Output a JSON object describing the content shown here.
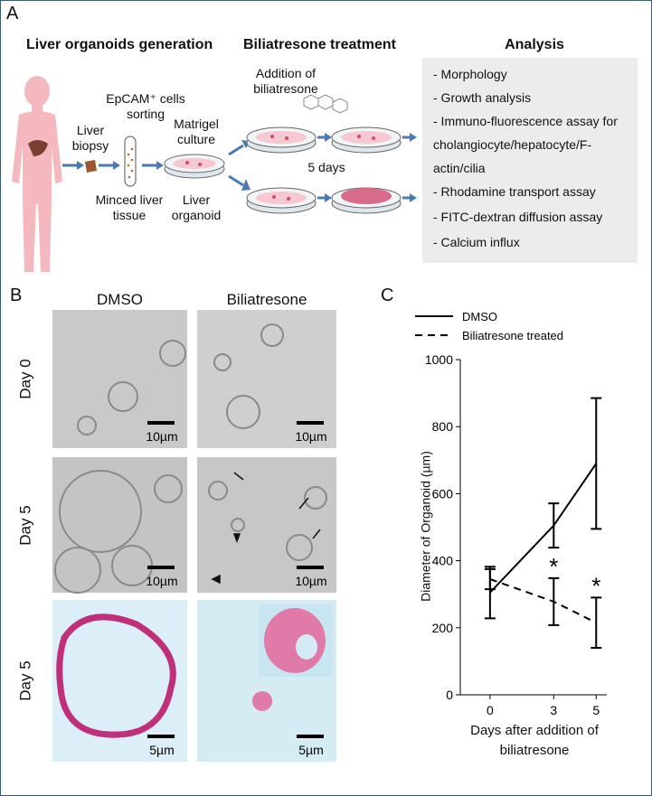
{
  "panel_labels": [
    "A",
    "B",
    "C"
  ],
  "panel_a": {
    "headings": [
      "Liver organoids generation",
      "Biliatresone treatment",
      "Analysis"
    ],
    "labels": {
      "biopsy": "Liver biopsy",
      "sorting": "EpCAM⁺ cells sorting",
      "matrigel": "Matrigel culture",
      "minced": "Minced liver tissue",
      "organoid": "Liver organoid",
      "addition": "Addition of biliatresone",
      "days": "5 days"
    },
    "analysis": [
      "- Morphology",
      "- Growth analysis",
      "- Immuno-fluorescence assay for cholangiocyte/hepatocyte/F-actin/cilia",
      "- Rhodamine transport assay",
      "- FITC-dextran diffusion assay",
      "- Calcium influx"
    ]
  },
  "panel_b": {
    "columns": [
      "DMSO",
      "Biliatresone"
    ],
    "rows": [
      "Day 0",
      "Day 5",
      "Day 5"
    ],
    "scale_bars": [
      [
        "10µm",
        "10µm"
      ],
      [
        "10µm",
        "10µm"
      ],
      [
        "5µm",
        "5µm"
      ]
    ]
  },
  "chart_data": {
    "type": "line",
    "x_label": "Days after addition of biliatresone",
    "y_label": "Diameter of Organoid (µm)",
    "x": [
      0,
      3,
      5
    ],
    "xlim": [
      -1.4,
      5.5
    ],
    "xticks": [
      0,
      3,
      5
    ],
    "ylim": [
      0,
      1000
    ],
    "yticks": [
      0,
      200,
      400,
      600,
      800,
      1000
    ],
    "grid": false,
    "series": [
      {
        "name": "DMSO",
        "color": "#000000",
        "dashed": false,
        "values": [
          305,
          505,
          690
        ],
        "errors": [
          77,
          66,
          195
        ]
      },
      {
        "name": "Biliatresone treated",
        "color": "#000000",
        "dashed": true,
        "values": [
          345,
          278,
          215
        ],
        "errors": [
          30,
          70,
          75
        ]
      }
    ],
    "annotations": [
      {
        "text": "*",
        "x": 3
      },
      {
        "text": "*",
        "x": 5
      }
    ]
  }
}
